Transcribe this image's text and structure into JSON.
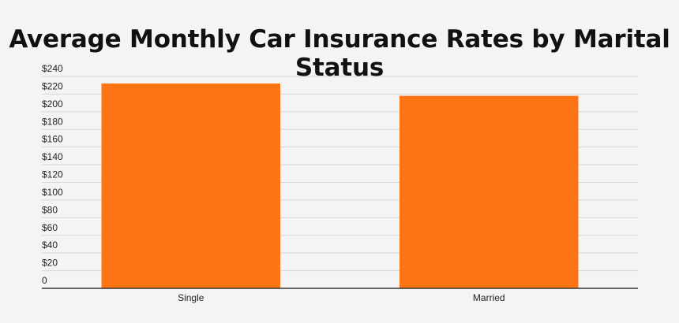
{
  "chart_data": {
    "type": "bar",
    "title": "Average Monthly Car Insurance Rates by Marital Status",
    "categories": [
      "Single",
      "Married"
    ],
    "values": [
      232,
      218
    ],
    "ylim": [
      0,
      240
    ],
    "yticks": [
      0,
      20,
      40,
      60,
      80,
      100,
      120,
      140,
      160,
      180,
      200,
      220,
      240
    ],
    "ytick_labels": [
      "0",
      "$20",
      "$40",
      "$60",
      "$80",
      "$100",
      "$120",
      "$140",
      "$160",
      "$180",
      "$200",
      "$220",
      "$240"
    ],
    "xlabel": "",
    "ylabel": "",
    "grid": true,
    "legend": "none",
    "bar_color": "#ff7415",
    "grid_color": "#d6d6d6",
    "axis_color": "#333333",
    "background": "#f5f4f4"
  }
}
